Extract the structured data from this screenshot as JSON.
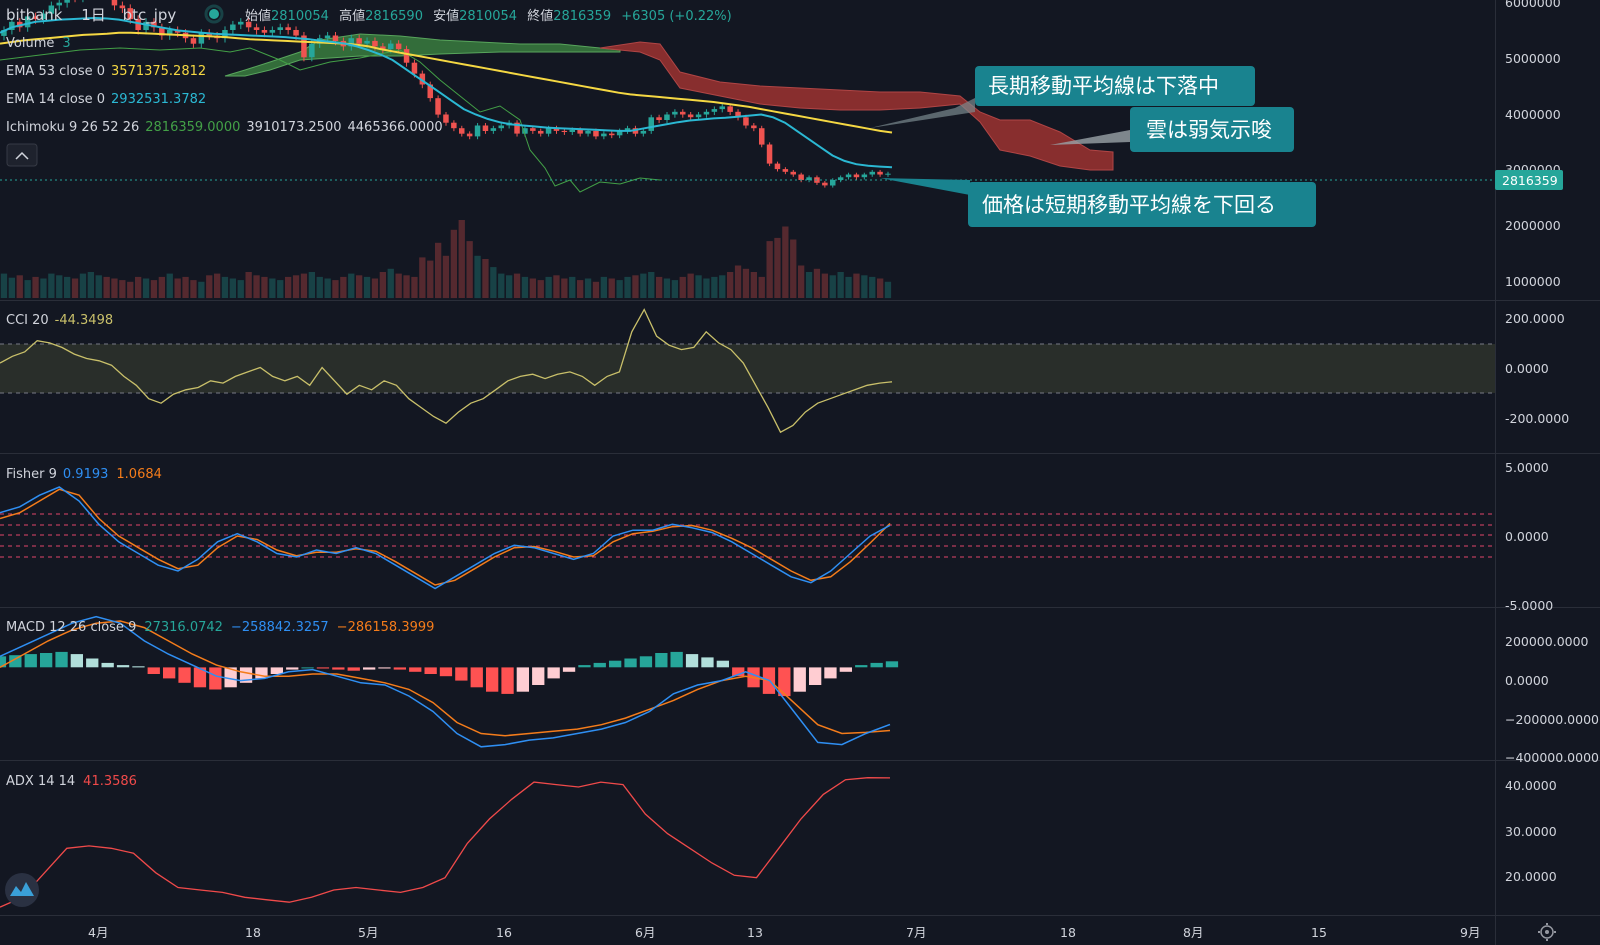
{
  "colors": {
    "background": "#131722",
    "up": "#26a69a",
    "down": "#ef5350",
    "ema53": "#f5d843",
    "ema14": "#2bb8d3",
    "cloud_bull": "#3a7d3e",
    "cloud_bear": "#8e2f2f",
    "note": "#19838f",
    "cci": "#c9c06a",
    "fisher_main": "#2f8ff3",
    "fisher_trigger": "#f47c1b",
    "macd": "#2f8ff3",
    "signal": "#f47c1b",
    "adx": "#f04a4a",
    "price_tag": "#26a69a"
  },
  "header": {
    "exchange": "bitbank",
    "interval": "1日",
    "symbol": "btc_jpy",
    "open_label": "始値",
    "open": "2810054",
    "high_label": "高値",
    "high": "2816590",
    "low_label": "安値",
    "low": "2810054",
    "close_label": "終値",
    "close": "2816359",
    "change": "+6305 (+0.22%)"
  },
  "legend": {
    "volume": "Volume",
    "volume_value": "3",
    "ema53_label": "EMA 53 close 0",
    "ema53_value": "3571375.2812",
    "ema14_label": "EMA 14 close 0",
    "ema14_value": "2932531.3782",
    "ichimoku_label": "Ichimoku 9 26 52 26",
    "ichimoku_v1": "2816359.0000",
    "ichimoku_v2": "3910173.2500",
    "ichimoku_v3": "4465366.0000",
    "collapse_icon": "chevron-up-icon"
  },
  "annotations": [
    {
      "text": "長期移動平均線は下落中"
    },
    {
      "text": "雲は弱気示唆"
    },
    {
      "text": "価格は短期移動平均線を下回る"
    }
  ],
  "price_tag": "2816359",
  "x_axis": [
    "4月",
    "18",
    "5月",
    "16",
    "6月",
    "13",
    "7月",
    "18",
    "8月",
    "15",
    "9月"
  ],
  "price_axis": [
    "6000000",
    "5000000",
    "4000000",
    "3000000",
    "2000000",
    "1000000"
  ],
  "cci_panel": {
    "label": "CCI 20",
    "value": "-44.3498",
    "axis": [
      "200.0000",
      "0.0000",
      "-200.0000"
    ]
  },
  "fisher_panel": {
    "label": "Fisher 9",
    "value1": "0.9193",
    "value2": "1.0684",
    "axis": [
      "5.0000",
      "0.0000",
      "-5.0000"
    ]
  },
  "macd_panel": {
    "label": "MACD 12 26 close 9",
    "value1": "27316.0742",
    "value2": "−258842.3257",
    "value3": "−286158.3999",
    "axis": [
      "200000.0000",
      "0.0000",
      "−200000.0000",
      "−400000.0000"
    ]
  },
  "adx_panel": {
    "label": "ADX 14 14",
    "value": "41.3586",
    "axis": [
      "40.0000",
      "30.0000",
      "20.0000"
    ]
  },
  "chart_data": [
    {
      "type": "candlestick",
      "title": "bitbank 1日 btc_jpy",
      "ylim": [
        500000,
        6000000
      ],
      "x_start_date": "2021-03-22",
      "close": [
        5450000,
        5600000,
        5500000,
        5700000,
        5650000,
        5750000,
        5900000,
        5950000,
        6100000,
        6050000,
        6150000,
        6200000,
        6300000,
        6100000,
        5900000,
        5850000,
        5650000,
        5450000,
        5600000,
        5500000,
        5350000,
        5450000,
        5400000,
        5300000,
        5200000,
        5400000,
        5350000,
        5300000,
        5450000,
        5550000,
        5600000,
        5500000,
        5450000,
        5400000,
        5450000,
        5500000,
        5450000,
        5350000,
        4950000,
        5200000,
        5300000,
        5350000,
        5250000,
        5150000,
        5300000,
        5200000,
        5250000,
        5150000,
        5100000,
        5200000,
        5100000,
        4850000,
        4650000,
        4450000,
        4200000,
        3900000,
        3750000,
        3650000,
        3550000,
        3500000,
        3700000,
        3600000,
        3650000,
        3700000,
        3750000,
        3550000,
        3650000,
        3600000,
        3550000,
        3650000,
        3600000,
        3580000,
        3620000,
        3550000,
        3600000,
        3500000,
        3550000,
        3520000,
        3600000,
        3650000,
        3550000,
        3600000,
        3850000,
        3800000,
        3900000,
        3950000,
        3900000,
        3850000,
        3900000,
        3950000,
        4000000,
        4050000,
        3950000,
        3850000,
        3700000,
        3650000,
        3350000,
        3000000,
        2900000,
        2850000,
        2800000,
        2700000,
        2750000,
        2650000,
        2600000,
        2700000,
        2750000,
        2800000,
        2750000,
        2800000,
        2850000,
        2800000,
        2816359
      ],
      "volume": [
        300,
        250,
        280,
        220,
        260,
        240,
        300,
        280,
        260,
        240,
        300,
        320,
        280,
        260,
        240,
        220,
        200,
        260,
        240,
        220,
        260,
        300,
        240,
        260,
        220,
        200,
        280,
        300,
        260,
        240,
        220,
        320,
        280,
        260,
        240,
        220,
        260,
        280,
        300,
        320,
        260,
        240,
        220,
        260,
        300,
        280,
        260,
        240,
        320,
        360,
        300,
        280,
        260,
        500,
        460,
        680,
        520,
        840,
        960,
        700,
        520,
        480,
        380,
        300,
        280,
        300,
        260,
        240,
        220,
        260,
        280,
        240,
        260,
        220,
        240,
        200,
        260,
        240,
        220,
        260,
        280,
        300,
        320,
        260,
        240,
        220,
        260,
        300,
        280,
        240,
        260,
        280,
        320,
        400,
        360,
        320,
        260,
        700,
        740,
        880,
        720,
        400,
        320,
        360,
        300,
        280,
        320,
        260,
        300,
        280,
        260,
        240,
        200
      ],
      "ema53": [
        5200000,
        5230000,
        5260000,
        5280000,
        5300000,
        5320000,
        5340000,
        5360000,
        5370000,
        5380000,
        5400000,
        5400000,
        5390000,
        5380000,
        5370000,
        5360000,
        5350000,
        5340000,
        5330000,
        5320000,
        5300000,
        5280000,
        5270000,
        5260000,
        5250000,
        5240000,
        5230000,
        5220000,
        5210000,
        5200000,
        5180000,
        5150000,
        5100000,
        5060000,
        5020000,
        4980000,
        4940000,
        4900000,
        4860000,
        4820000,
        4780000,
        4740000,
        4700000,
        4660000,
        4620000,
        4580000,
        4540000,
        4500000,
        4460000,
        4420000,
        4380000,
        4340000,
        4300000,
        4270000,
        4250000,
        4230000,
        4210000,
        4190000,
        4170000,
        4150000,
        4130000,
        4100000,
        4070000,
        4040000,
        4000000,
        3960000,
        3920000,
        3880000,
        3840000,
        3800000,
        3760000,
        3720000,
        3680000,
        3640000,
        3600000,
        3571375
      ],
      "ema14": [
        5400000,
        5500000,
        5550000,
        5600000,
        5620000,
        5640000,
        5650000,
        5660000,
        5670000,
        5660000,
        5640000,
        5600000,
        5560000,
        5520000,
        5480000,
        5440000,
        5420000,
        5400000,
        5380000,
        5370000,
        5360000,
        5350000,
        5340000,
        5330000,
        5320000,
        5300000,
        5280000,
        5250000,
        5230000,
        5200000,
        5150000,
        5080000,
        5000000,
        4900000,
        4750000,
        4600000,
        4450000,
        4300000,
        4150000,
        4000000,
        3900000,
        3820000,
        3760000,
        3720000,
        3700000,
        3680000,
        3660000,
        3650000,
        3640000,
        3630000,
        3620000,
        3610000,
        3600000,
        3600000,
        3640000,
        3680000,
        3720000,
        3760000,
        3790000,
        3810000,
        3830000,
        3840000,
        3860000,
        3880000,
        3900000,
        3850000,
        3750000,
        3600000,
        3450000,
        3300000,
        3150000,
        3050000,
        2990000,
        2960000,
        2945000,
        2932531
      ]
    },
    {
      "type": "line",
      "title": "CCI 20",
      "ylim": [
        -350,
        300
      ],
      "values": [
        40,
        70,
        90,
        140,
        130,
        110,
        80,
        60,
        50,
        30,
        -20,
        -60,
        -120,
        -140,
        -100,
        -80,
        -70,
        -40,
        -50,
        -20,
        0,
        20,
        -20,
        -40,
        -20,
        -60,
        20,
        -40,
        -100,
        -60,
        -80,
        -40,
        -60,
        -120,
        -160,
        -200,
        -230,
        -180,
        -140,
        -120,
        -80,
        -40,
        -20,
        -10,
        -30,
        -10,
        0,
        -20,
        -60,
        -20,
        0,
        180,
        280,
        160,
        120,
        100,
        110,
        180,
        130,
        100,
        40,
        -60,
        -160,
        -270,
        -240,
        -180,
        -140,
        -120,
        -100,
        -80,
        -60,
        -50,
        -44.35
      ]
    },
    {
      "type": "line",
      "title": "Fisher 9",
      "ylim": [
        -6,
        6
      ],
      "series": [
        {
          "values": [
            2.0,
            2.5,
            3.5,
            4.2,
            3.0,
            1.0,
            -0.5,
            -1.5,
            -2.5,
            -3.0,
            -2.0,
            -0.5,
            0.2,
            -0.5,
            -1.5,
            -1.8,
            -1.2,
            -1.5,
            -1.0,
            -1.5,
            -2.5,
            -3.5,
            -4.5,
            -3.5,
            -2.5,
            -1.5,
            -0.8,
            -1.0,
            -1.5,
            -2.0,
            -1.5,
            0.0,
            0.5,
            0.5,
            1.0,
            0.7,
            0.3,
            -0.5,
            -1.5,
            -2.5,
            -3.5,
            -4.0,
            -3.0,
            -1.5,
            0.0,
            0.9193
          ]
        },
        {
          "values": [
            1.5,
            2.0,
            3.0,
            4.0,
            3.5,
            1.5,
            0.0,
            -1.0,
            -2.0,
            -2.8,
            -2.5,
            -1.0,
            0.0,
            -0.3,
            -1.2,
            -1.7,
            -1.4,
            -1.4,
            -1.1,
            -1.3,
            -2.2,
            -3.2,
            -4.2,
            -3.8,
            -2.8,
            -1.8,
            -1.0,
            -0.9,
            -1.3,
            -1.8,
            -1.7,
            -0.5,
            0.2,
            0.4,
            0.8,
            0.9,
            0.5,
            -0.2,
            -1.0,
            -2.0,
            -3.0,
            -3.8,
            -3.5,
            -2.2,
            -0.6,
            1.0684
          ]
        }
      ]
    },
    {
      "type": "bar_line",
      "title": "MACD 12 26 close 9",
      "ylim": [
        -420000,
        260000
      ],
      "histogram": [
        50000,
        55000,
        60000,
        65000,
        70000,
        60000,
        40000,
        20000,
        10000,
        5000,
        -30000,
        -50000,
        -70000,
        -90000,
        -100000,
        -90000,
        -70000,
        -50000,
        -30000,
        -10000,
        0,
        -5000,
        -10000,
        -15000,
        -10000,
        -5000,
        -10000,
        -20000,
        -30000,
        -40000,
        -60000,
        -90000,
        -110000,
        -120000,
        -110000,
        -80000,
        -50000,
        -20000,
        10000,
        20000,
        30000,
        40000,
        50000,
        65000,
        70000,
        60000,
        45000,
        30000,
        -40000,
        -90000,
        -120000,
        -130000,
        -110000,
        -80000,
        -50000,
        -20000,
        10000,
        20000,
        27316
      ],
      "series": [
        {
          "values": [
            50000,
            100000,
            150000,
            200000,
            230000,
            200000,
            120000,
            60000,
            10000,
            -40000,
            -60000,
            -50000,
            -20000,
            -10000,
            -40000,
            -70000,
            -80000,
            -130000,
            -200000,
            -300000,
            -360000,
            -350000,
            -330000,
            -320000,
            -300000,
            -280000,
            -250000,
            -200000,
            -120000,
            -80000,
            -60000,
            -20000,
            -60000,
            -200000,
            -340000,
            -350000,
            -300000,
            -258842
          ]
        },
        {
          "values": [
            0,
            60000,
            120000,
            170000,
            200000,
            210000,
            180000,
            120000,
            60000,
            10000,
            -20000,
            -40000,
            -40000,
            -30000,
            -30000,
            -50000,
            -70000,
            -100000,
            -160000,
            -250000,
            -300000,
            -310000,
            -300000,
            -290000,
            -280000,
            -260000,
            -230000,
            -190000,
            -150000,
            -100000,
            -60000,
            -40000,
            -60000,
            -160000,
            -260000,
            -300000,
            -295000,
            -286158
          ]
        }
      ]
    },
    {
      "type": "line",
      "title": "ADX 14 14",
      "ylim": [
        14,
        44
      ],
      "values": [
        15,
        17,
        22,
        27,
        27.5,
        27,
        26,
        22,
        19,
        18.5,
        18,
        17,
        16.5,
        16,
        17,
        18.5,
        19,
        18.5,
        18,
        19,
        21,
        28,
        33,
        37,
        40.5,
        40,
        39.5,
        40.5,
        40,
        34,
        30,
        27,
        24,
        21.5,
        21,
        27,
        33,
        38,
        41,
        41.4,
        41.36
      ]
    }
  ]
}
